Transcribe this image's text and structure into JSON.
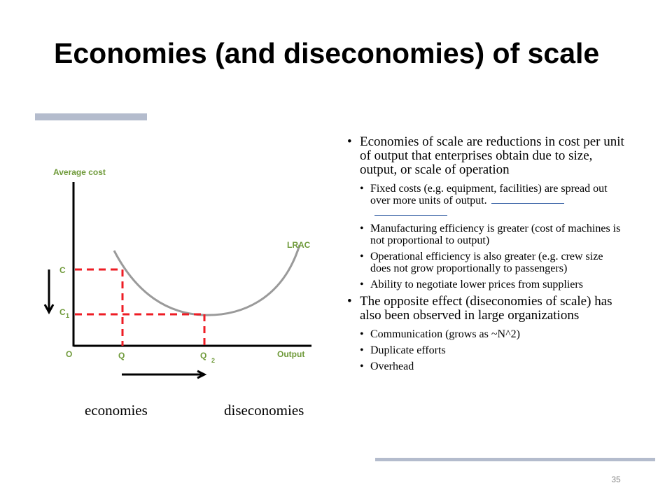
{
  "slide": {
    "title": "Economies (and diseconomies) of scale",
    "page_number": "35",
    "accent_bar_color": "#b4bccd",
    "link_underline_color": "#1f4e9a"
  },
  "diagram": {
    "y_axis_label": "Average cost",
    "x_axis_label": "Output",
    "origin_label": "O",
    "curve_label": "LRAC",
    "y_ticks": {
      "c": "C",
      "c1_main": "C",
      "c1_sub": "1"
    },
    "x_ticks": {
      "q": "Q",
      "q2_main": "Q",
      "q2_sub": "2"
    },
    "curve_color": "#9a9a9a",
    "guide_color": "#ee1c24",
    "label_color": "#6f9a3a",
    "axis_color": "#000000"
  },
  "captions": {
    "left": "economies",
    "right": "diseconomies"
  },
  "bullets": {
    "b1": "Economies of scale are reductions in cost per unit of output that enterprises obtain due to size, output, or scale of operation",
    "b1_sub": [
      "Fixed costs (e.g. equipment, facilities) are spread out over more units of output.",
      "Manufacturing efficiency is greater (cost of machines is not proportional to output)",
      "Operational efficiency is also greater (e.g. crew size does not grow proportionally to passengers)",
      "Ability to negotiate lower prices from suppliers"
    ],
    "b2": "The opposite effect (diseconomies of scale) has also been observed in large organizations",
    "b2_sub": [
      "Communication (grows as ~N^2)",
      "Duplicate efforts",
      "Overhead"
    ]
  }
}
